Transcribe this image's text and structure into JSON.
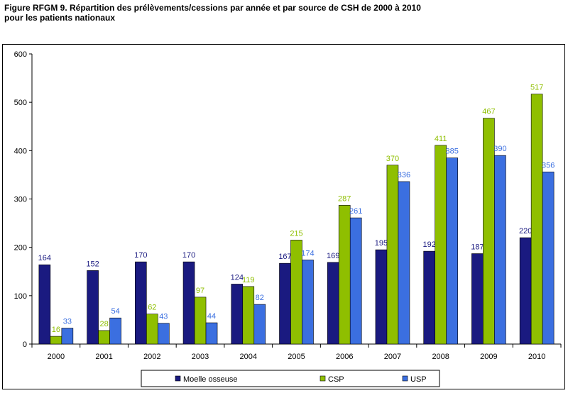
{
  "chart_data": {
    "type": "bar",
    "title": "Figure RFGM 9. Répartition des prélèvements/cessions par année et par source de CSH de 2000 à 2010",
    "subtitle": "pour les patients nationaux",
    "xlabel": "",
    "ylabel": "",
    "categories": [
      "2000",
      "2001",
      "2002",
      "2003",
      "2004",
      "2005",
      "2006",
      "2007",
      "2008",
      "2009",
      "2010"
    ],
    "ylim": [
      0,
      600
    ],
    "yticks": [
      "0",
      "100",
      "200",
      "300",
      "400",
      "500",
      "600"
    ],
    "grid": false,
    "legend_position": "bottom",
    "series": [
      {
        "name": "Moelle osseuse",
        "color": "#1a1a80",
        "label_color": "#1a1a80",
        "values": [
          164,
          152,
          170,
          170,
          124,
          167,
          169,
          195,
          192,
          187,
          220
        ]
      },
      {
        "name": "CSP",
        "color": "#8fbf00",
        "label_color": "#8fbf00",
        "values": [
          16,
          28,
          62,
          97,
          119,
          215,
          287,
          370,
          411,
          467,
          517
        ]
      },
      {
        "name": "USP",
        "color": "#3b6fe0",
        "label_color": "#3b6fe0",
        "values": [
          33,
          54,
          43,
          44,
          82,
          174,
          261,
          336,
          385,
          390,
          356
        ]
      }
    ]
  }
}
